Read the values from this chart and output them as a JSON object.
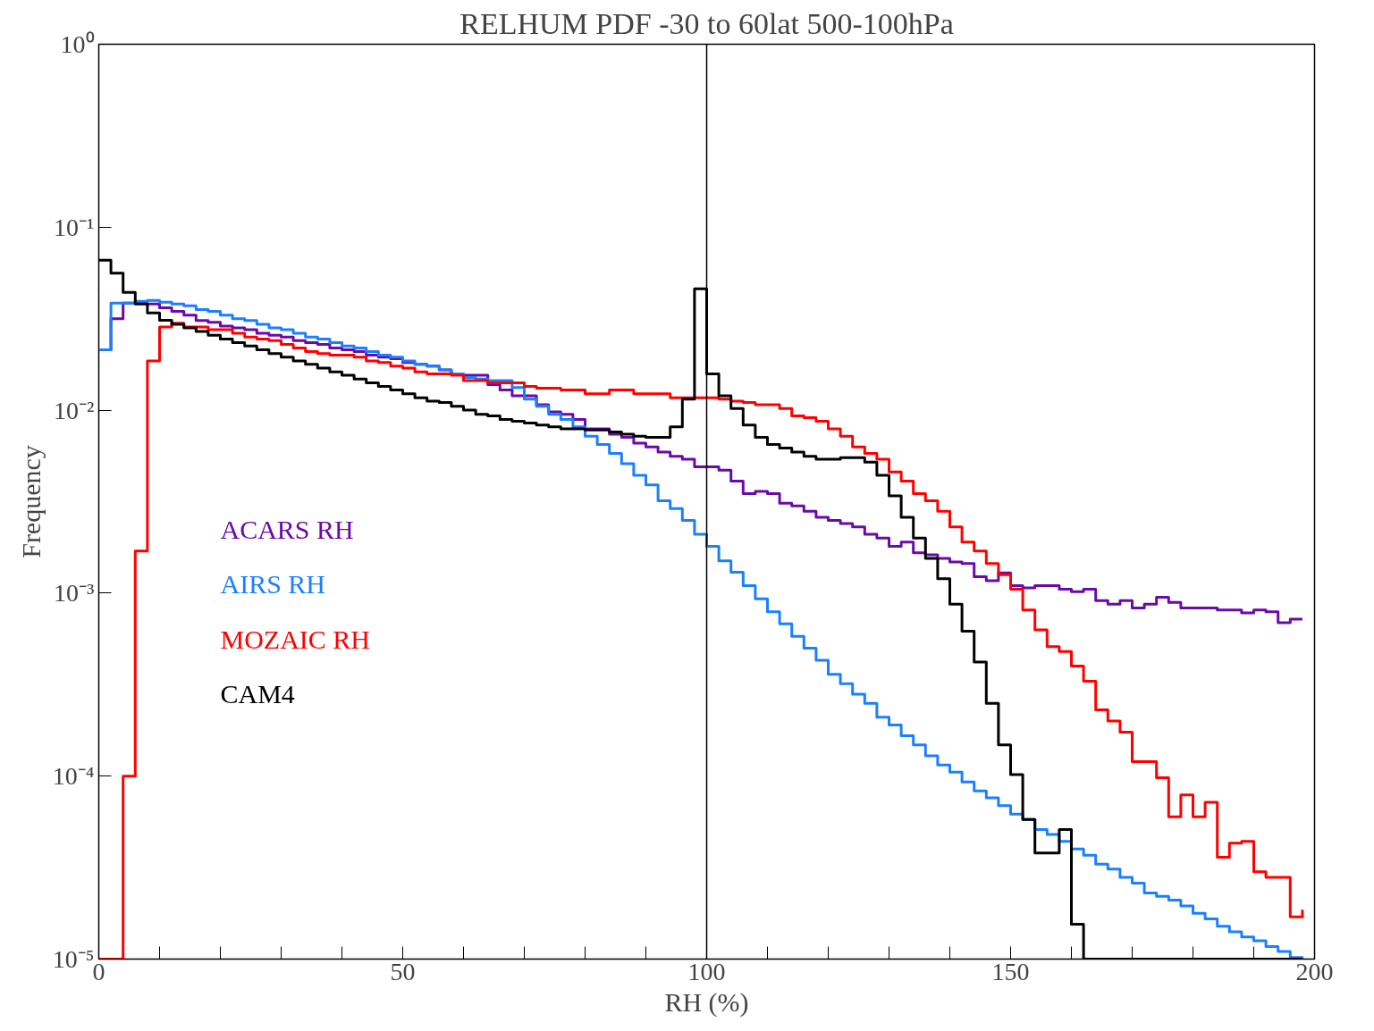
{
  "chart_data": {
    "type": "step",
    "title": "RELHUM PDF -30 to 60lat 500-100hPa",
    "xlabel": "RH (%)",
    "ylabel": "Frequency",
    "x": [
      0,
      2,
      4,
      6,
      8,
      10,
      12,
      14,
      16,
      18,
      20,
      22,
      24,
      26,
      28,
      30,
      32,
      34,
      36,
      38,
      40,
      42,
      44,
      46,
      48,
      50,
      52,
      54,
      56,
      58,
      60,
      62,
      64,
      66,
      68,
      70,
      72,
      74,
      76,
      78,
      80,
      82,
      84,
      86,
      88,
      90,
      92,
      94,
      96,
      98,
      100,
      102,
      104,
      106,
      108,
      110,
      112,
      114,
      116,
      118,
      120,
      122,
      124,
      126,
      128,
      130,
      132,
      134,
      136,
      138,
      140,
      142,
      144,
      146,
      148,
      150,
      152,
      154,
      156,
      158,
      160,
      162,
      164,
      166,
      168,
      170,
      172,
      174,
      176,
      178,
      180,
      182,
      184,
      186,
      188,
      190,
      192,
      194,
      196,
      198
    ],
    "series": [
      {
        "name": "ACARS RH",
        "color": "#6a0aa8",
        "values": [
          0.0214,
          0.0316,
          0.0385,
          0.0385,
          0.038,
          0.0363,
          0.0347,
          0.0331,
          0.0309,
          0.0302,
          0.0288,
          0.0282,
          0.0275,
          0.0263,
          0.0257,
          0.0251,
          0.024,
          0.0234,
          0.0229,
          0.0219,
          0.0214,
          0.0209,
          0.02,
          0.0195,
          0.0191,
          0.0182,
          0.0178,
          0.0174,
          0.0166,
          0.0158,
          0.0155,
          0.0155,
          0.0138,
          0.0129,
          0.012,
          0.012,
          0.0107,
          0.0098,
          0.0095,
          0.0089,
          0.0079,
          0.0079,
          0.0074,
          0.0071,
          0.0066,
          0.0063,
          0.0059,
          0.0056,
          0.0054,
          0.0049,
          0.0049,
          0.0047,
          0.0041,
          0.0035,
          0.0036,
          0.0035,
          0.0031,
          0.003,
          0.0028,
          0.0026,
          0.0025,
          0.0024,
          0.0023,
          0.0021,
          0.002,
          0.0018,
          0.0019,
          0.00166,
          0.00162,
          0.00155,
          0.00148,
          0.00145,
          0.00123,
          0.00117,
          0.00129,
          0.0011,
          0.00107,
          0.0011,
          0.0011,
          0.00105,
          0.00102,
          0.00105,
          0.00091,
          0.00087,
          0.00091,
          0.00083,
          0.00087,
          0.00095,
          0.00089,
          0.00083,
          0.00083,
          0.00083,
          0.00081,
          0.00081,
          0.00078,
          0.00081,
          0.00079,
          0.00069,
          0.00072,
          0.00072
        ]
      },
      {
        "name": "AIRS RH",
        "color": "#1a80ff",
        "values": [
          0.0214,
          0.0385,
          0.0385,
          0.0394,
          0.0398,
          0.0389,
          0.038,
          0.0372,
          0.0355,
          0.0347,
          0.0331,
          0.0316,
          0.0309,
          0.0295,
          0.0282,
          0.0275,
          0.0263,
          0.0251,
          0.0245,
          0.0234,
          0.0224,
          0.0219,
          0.0209,
          0.02,
          0.0195,
          0.0186,
          0.0178,
          0.0174,
          0.0166,
          0.0158,
          0.0151,
          0.0148,
          0.0145,
          0.0145,
          0.0133,
          0.0115,
          0.0105,
          0.0095,
          0.0089,
          0.0081,
          0.0072,
          0.0065,
          0.0058,
          0.0051,
          0.0044,
          0.0039,
          0.0032,
          0.0029,
          0.0025,
          0.0021,
          0.0018,
          0.0015,
          0.0013,
          0.0011,
          0.00093,
          0.00079,
          0.00068,
          0.00058,
          0.0005,
          0.00043,
          0.00036,
          0.00032,
          0.00028,
          0.00025,
          0.00021,
          0.00019,
          0.000166,
          0.000148,
          0.000129,
          0.000115,
          0.000105,
          9.3e-05,
          8.3e-05,
          7.6e-05,
          6.9e-05,
          6.2e-05,
          5.8e-05,
          5.1e-05,
          4.8e-05,
          4.4e-05,
          4e-05,
          3.7e-05,
          3.3e-05,
          3.1e-05,
          2.8e-05,
          2.6e-05,
          2.3e-05,
          2.2e-05,
          2.1e-05,
          1.95e-05,
          1.78e-05,
          1.66e-05,
          1.51e-05,
          1.41e-05,
          1.32e-05,
          1.26e-05,
          1.17e-05,
          1.1e-05,
          1.02e-05,
          1e-05
        ]
      },
      {
        "name": "MOZAIC RH",
        "color": "#ff0000",
        "values": [
          1e-05,
          1e-05,
          0.0001,
          0.0017,
          0.0186,
          0.0285,
          0.0299,
          0.0285,
          0.0285,
          0.0275,
          0.0275,
          0.0263,
          0.0251,
          0.0245,
          0.024,
          0.0229,
          0.0219,
          0.0209,
          0.0204,
          0.02,
          0.02,
          0.0195,
          0.0186,
          0.0182,
          0.0174,
          0.017,
          0.0162,
          0.0158,
          0.0158,
          0.0155,
          0.0145,
          0.0145,
          0.0141,
          0.0141,
          0.0141,
          0.0135,
          0.0132,
          0.0132,
          0.0129,
          0.0129,
          0.0123,
          0.0123,
          0.0129,
          0.0129,
          0.0123,
          0.0123,
          0.0123,
          0.0117,
          0.0117,
          0.0117,
          0.0117,
          0.0115,
          0.0112,
          0.011,
          0.0107,
          0.0107,
          0.0102,
          0.0093,
          0.0091,
          0.0087,
          0.0079,
          0.0072,
          0.0063,
          0.0058,
          0.0054,
          0.0046,
          0.0041,
          0.0035,
          0.0032,
          0.0028,
          0.0023,
          0.0019,
          0.0017,
          0.00145,
          0.00126,
          0.00105,
          0.00081,
          0.00063,
          0.00051,
          0.00048,
          0.0004,
          0.00033,
          0.00023,
          0.0002,
          0.000174,
          0.00012,
          0.00012,
          9.8e-05,
          6e-05,
          7.9e-05,
          6e-05,
          7.2e-05,
          3.6e-05,
          4.3e-05,
          4.4e-05,
          3e-05,
          2.8e-05,
          2.8e-05,
          1.7e-05,
          1.86e-05
        ]
      },
      {
        "name": "CAM4",
        "color": "#000000",
        "values": [
          0.066,
          0.056,
          0.044,
          0.038,
          0.034,
          0.031,
          0.0295,
          0.0282,
          0.0269,
          0.0257,
          0.0245,
          0.0234,
          0.0224,
          0.0214,
          0.0204,
          0.0195,
          0.0186,
          0.0178,
          0.017,
          0.0162,
          0.0155,
          0.0148,
          0.0141,
          0.0135,
          0.0129,
          0.0123,
          0.0117,
          0.0112,
          0.011,
          0.0105,
          0.01,
          0.0095,
          0.0093,
          0.0089,
          0.0087,
          0.0085,
          0.0083,
          0.0081,
          0.0079,
          0.0079,
          0.0078,
          0.0078,
          0.0076,
          0.0074,
          0.0072,
          0.0071,
          0.0071,
          0.0081,
          0.0115,
          0.046,
          0.0158,
          0.012,
          0.0102,
          0.0083,
          0.0071,
          0.0065,
          0.0062,
          0.0059,
          0.0056,
          0.0054,
          0.0054,
          0.0055,
          0.0055,
          0.0052,
          0.0044,
          0.0034,
          0.0026,
          0.002,
          0.00155,
          0.0012,
          0.00087,
          0.00062,
          0.00042,
          0.00025,
          0.000148,
          0.000102,
          5.8e-05,
          3.8e-05,
          3.8e-05,
          5.1e-05,
          1.55e-05,
          1e-05,
          1e-05,
          1e-05,
          1e-05,
          1e-05,
          1e-05,
          1e-05,
          1e-05,
          1e-05,
          1e-05,
          1e-05,
          1e-05,
          1e-05,
          1e-05,
          1e-05,
          1e-05,
          1e-05,
          1e-05,
          1e-05
        ]
      }
    ],
    "xlim": [
      0,
      200
    ],
    "ylim": [
      1e-05,
      1
    ],
    "xticks": [
      0,
      {
        "value": 10,
        "label": null
      },
      {
        "value": 20,
        "label": null
      },
      {
        "value": 30,
        "label": null
      },
      {
        "value": 40,
        "label": null
      },
      50,
      {
        "value": 60,
        "label": null
      },
      {
        "value": 70,
        "label": null
      },
      {
        "value": 80,
        "label": null
      },
      {
        "value": 90,
        "label": null
      },
      100,
      {
        "value": 110,
        "label": null
      },
      {
        "value": 120,
        "label": null
      },
      {
        "value": 130,
        "label": null
      },
      {
        "value": 140,
        "label": null
      },
      150,
      {
        "value": 160,
        "label": null
      },
      {
        "value": 170,
        "label": null
      },
      {
        "value": 180,
        "label": null
      },
      {
        "value": 190,
        "label": null
      },
      200
    ],
    "yticks": [
      {
        "value": 1e-05,
        "label": "10⁻⁵"
      },
      {
        "value": 0.0001,
        "label": "10⁻⁴"
      },
      {
        "value": 0.001,
        "label": "10⁻³"
      },
      {
        "value": 0.01,
        "label": "10⁻²"
      },
      {
        "value": 0.1,
        "label": "10⁻¹"
      },
      {
        "value": 1,
        "label": "10⁰"
      }
    ],
    "log": "y",
    "grid": false,
    "legend": "left",
    "ref_lines": [
      {
        "axis": "x",
        "value": 100,
        "color": "#000000"
      }
    ]
  }
}
